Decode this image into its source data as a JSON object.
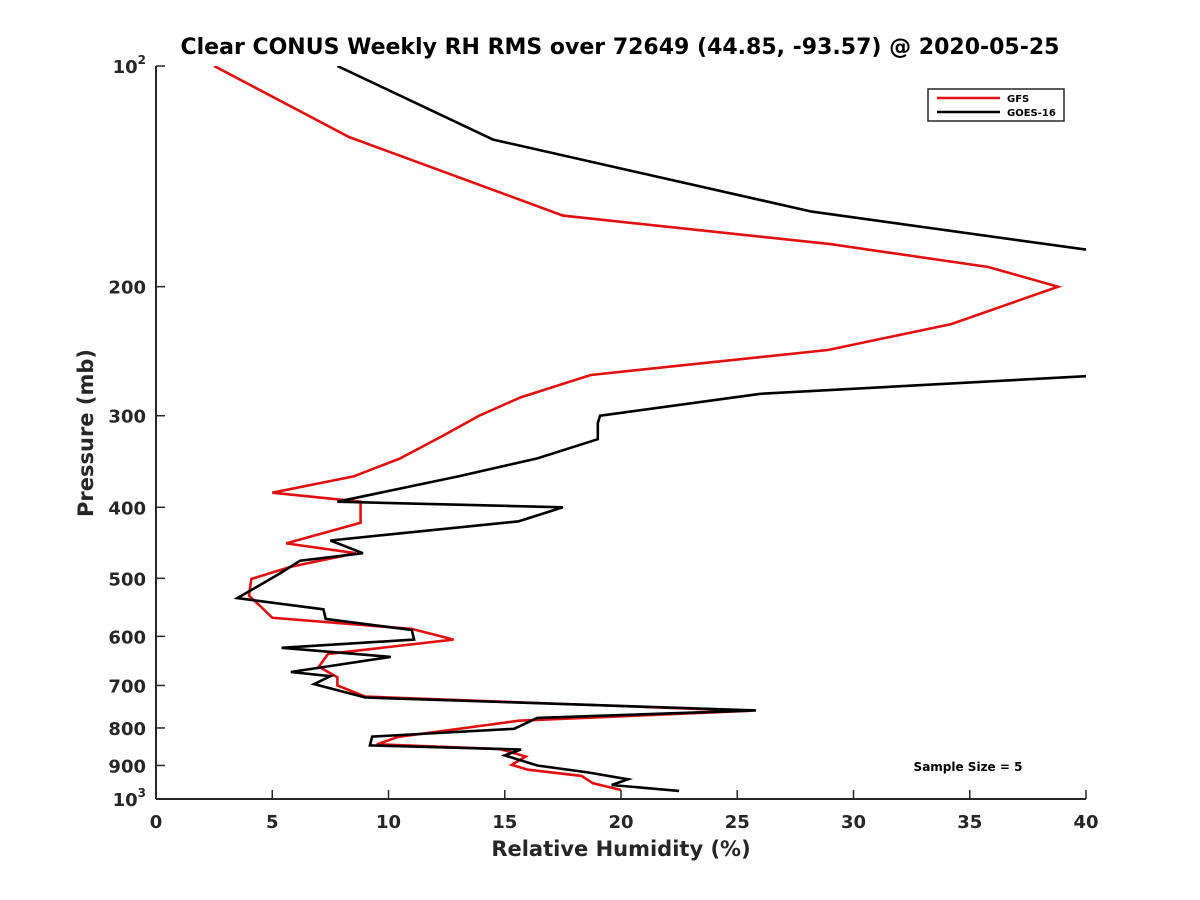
{
  "chart_data": {
    "type": "line",
    "title": "Clear CONUS Weekly RH RMS over 72649 (44.85, -93.57) @ 2020-05-25",
    "xlabel": "Relative Humidity (%)",
    "ylabel": "Pressure (mb)",
    "xlim": [
      0,
      40
    ],
    "ylim": [
      100,
      1000
    ],
    "yscale": "log",
    "y_reversed": true,
    "grid": false,
    "legend_position": "top-right",
    "x_ticks": [
      {
        "value": 0,
        "label": "0"
      },
      {
        "value": 5,
        "label": "5"
      },
      {
        "value": 10,
        "label": "10"
      },
      {
        "value": 15,
        "label": "15"
      },
      {
        "value": 20,
        "label": "20"
      },
      {
        "value": 25,
        "label": "25"
      },
      {
        "value": 30,
        "label": "30"
      },
      {
        "value": 35,
        "label": "35"
      },
      {
        "value": 40,
        "label": "40"
      }
    ],
    "y_ticks": [
      {
        "value": 100,
        "base": "10",
        "exp": "2"
      },
      {
        "value": 200,
        "base": "200",
        "exp": ""
      },
      {
        "value": 300,
        "base": "300",
        "exp": ""
      },
      {
        "value": 400,
        "base": "400",
        "exp": ""
      },
      {
        "value": 500,
        "base": "500",
        "exp": ""
      },
      {
        "value": 600,
        "base": "600",
        "exp": ""
      },
      {
        "value": 700,
        "base": "700",
        "exp": ""
      },
      {
        "value": 800,
        "base": "800",
        "exp": ""
      },
      {
        "value": 900,
        "base": "900",
        "exp": ""
      },
      {
        "value": 1000,
        "base": "10",
        "exp": "3"
      }
    ],
    "annotation": "Sample Size = 5",
    "series": [
      {
        "name": "GFS",
        "color": "#e01010",
        "x": [
          2.5,
          8.3,
          17.5,
          29.0,
          35.8,
          38.8,
          34.2,
          28.9,
          18.7,
          15.7,
          13.9,
          12.3,
          10.5,
          8.5,
          5.0,
          8.8,
          8.8,
          5.6,
          8.6,
          5.8,
          4.1,
          4.0,
          4.5,
          5.0,
          11.0,
          12.8,
          7.4,
          7.0,
          7.8,
          7.8,
          9.0,
          25.5,
          15.6,
          10.4,
          9.5,
          14.8,
          15.9,
          15.3,
          16.0,
          18.3,
          18.8,
          20.0
        ],
        "y": [
          100,
          125,
          160,
          175,
          188,
          200,
          225,
          244,
          264,
          283,
          300,
          320,
          343,
          363,
          382,
          393,
          420,
          448,
          462,
          482,
          501,
          528,
          546,
          566,
          586,
          606,
          634,
          660,
          682,
          700,
          725,
          758,
          782,
          823,
          842,
          855,
          875,
          898,
          912,
          930,
          952,
          972
        ]
      },
      {
        "name": "GOES-16",
        "color": "#000000",
        "x": [
          7.8,
          14.5,
          28.2,
          40.0,
          null,
          40.0,
          26.0,
          19.1,
          19.0,
          19.0,
          16.4,
          13.0,
          7.8,
          17.5,
          15.6,
          7.5,
          8.9,
          6.2,
          5.3,
          3.5,
          7.2,
          7.3,
          11.0,
          11.1,
          5.4,
          10.1,
          5.8,
          7.5,
          6.8,
          9.0,
          25.8,
          16.4,
          15.4,
          9.3,
          9.2,
          15.7,
          15.0,
          16.4,
          18.6,
          20.3,
          19.6,
          22.5
        ],
        "y": [
          100,
          126,
          158,
          178,
          null,
          265,
          280,
          300,
          307,
          323,
          343,
          363,
          393,
          400,
          418,
          444,
          462,
          473,
          493,
          532,
          551,
          568,
          588,
          606,
          622,
          640,
          671,
          680,
          697,
          727,
          757,
          775,
          802,
          822,
          845,
          856,
          872,
          900,
          920,
          940,
          957,
          975
        ]
      }
    ]
  }
}
